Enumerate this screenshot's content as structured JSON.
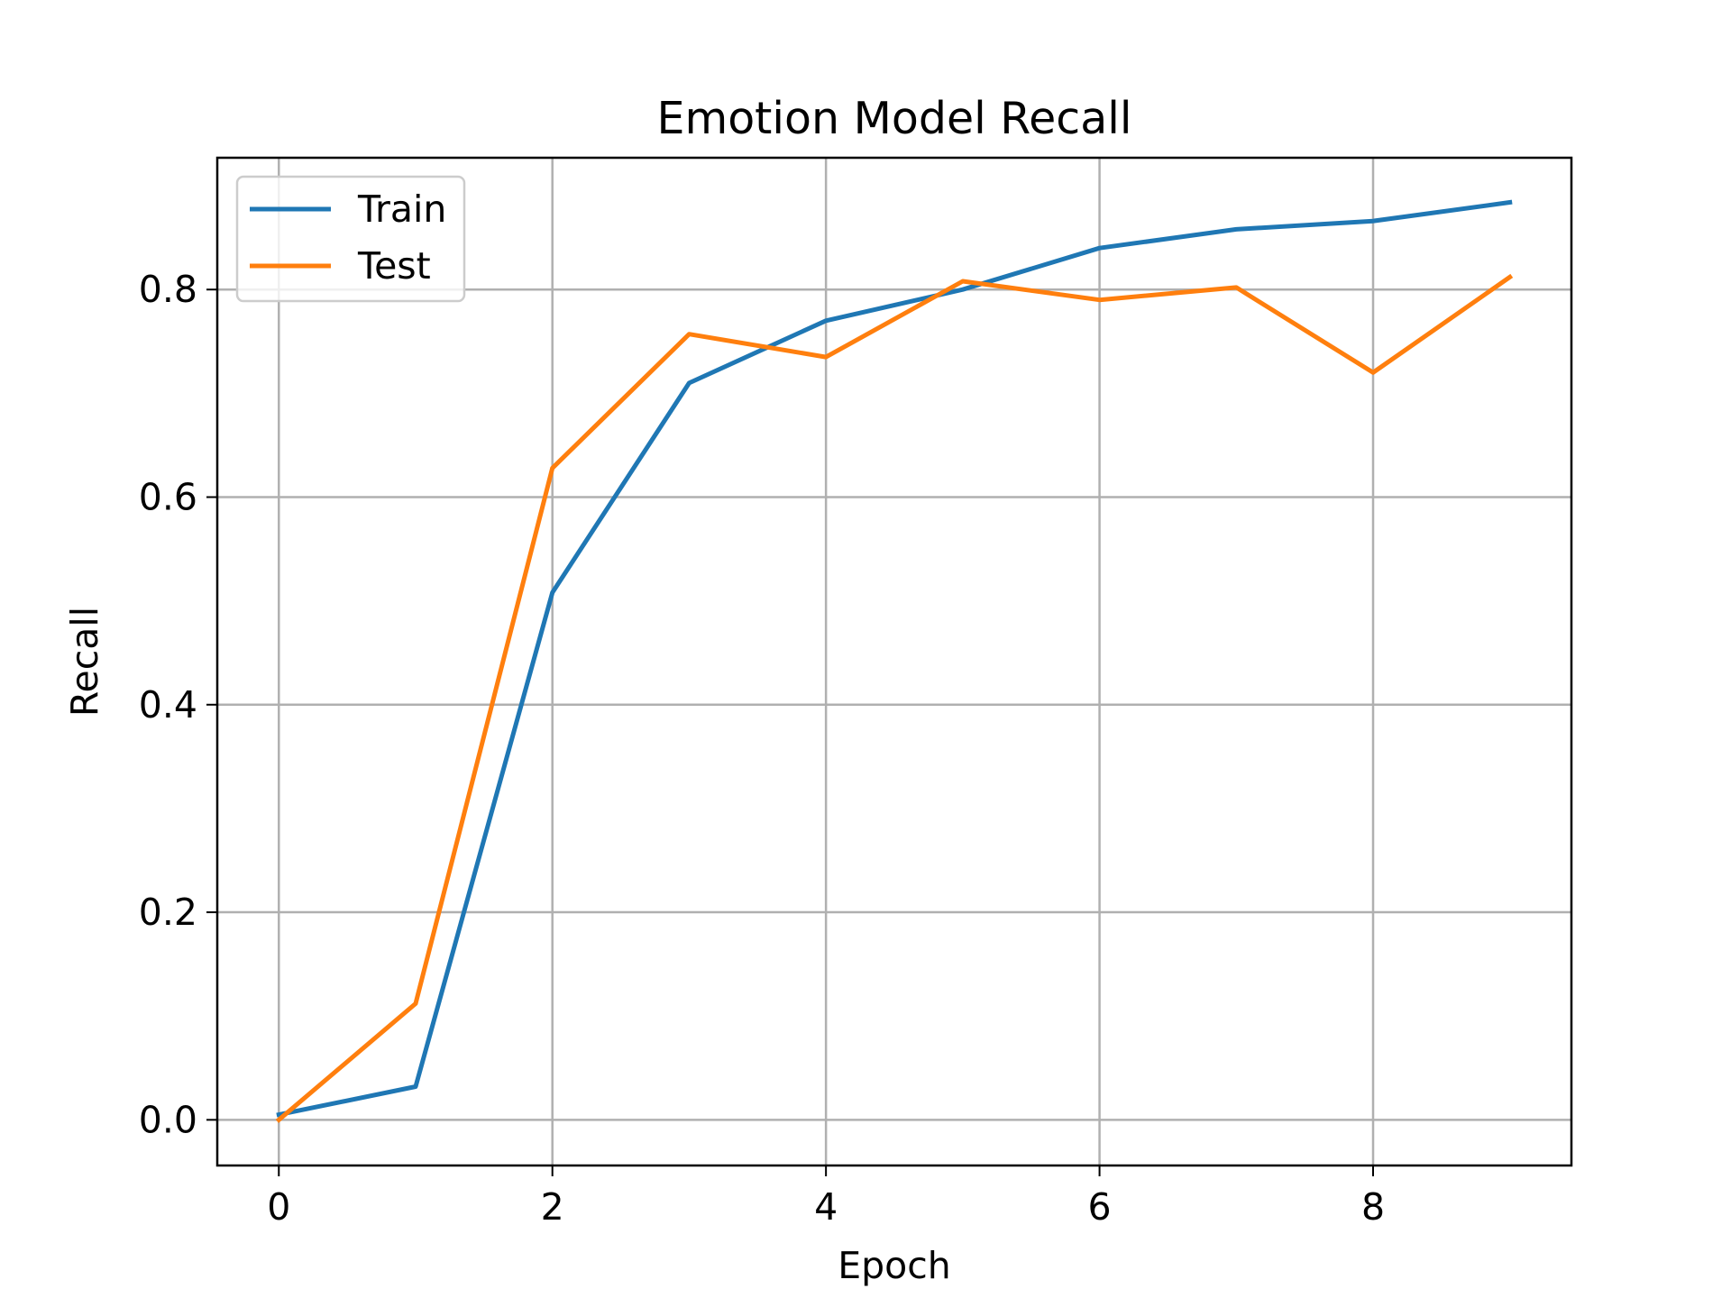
{
  "chart_data": {
    "type": "line",
    "title": "Emotion Model Recall",
    "xlabel": "Epoch",
    "ylabel": "Recall",
    "x": [
      0,
      1,
      2,
      3,
      4,
      5,
      6,
      7,
      8,
      9
    ],
    "xlim": [
      -0.45,
      9.45
    ],
    "ylim": [
      -0.044,
      0.927
    ],
    "xticks": [
      0,
      2,
      4,
      6,
      8
    ],
    "yticks": [
      0.0,
      0.2,
      0.4,
      0.6,
      0.8
    ],
    "xtick_labels": [
      "0",
      "2",
      "4",
      "6",
      "8"
    ],
    "ytick_labels": [
      "0.0",
      "0.2",
      "0.4",
      "0.6",
      "0.8"
    ],
    "grid": true,
    "legend_position": "top-left",
    "series": [
      {
        "name": "Train",
        "color": "#1f77b4",
        "values": [
          0.005,
          0.032,
          0.508,
          0.71,
          0.77,
          0.8,
          0.84,
          0.858,
          0.866,
          0.884
        ]
      },
      {
        "name": "Test",
        "color": "#ff7f0e",
        "values": [
          0.0,
          0.112,
          0.628,
          0.757,
          0.735,
          0.808,
          0.79,
          0.802,
          0.72,
          0.812
        ]
      }
    ]
  }
}
